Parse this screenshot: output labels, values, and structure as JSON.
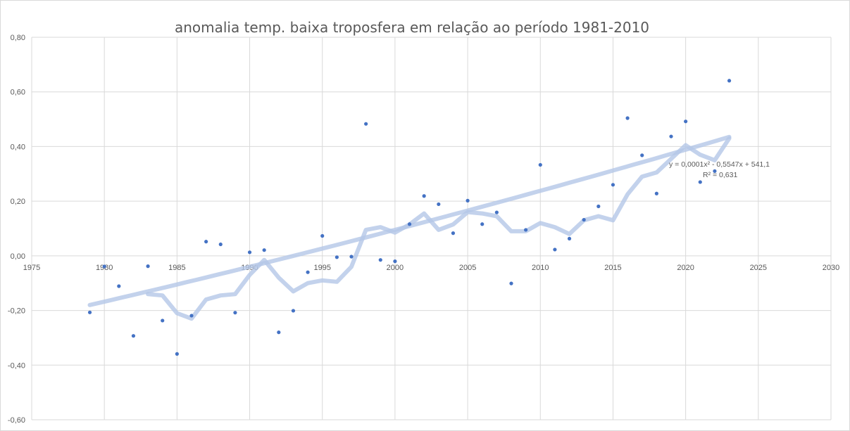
{
  "chart_data": {
    "type": "scatter",
    "title": "anomalia temp. baixa troposfera em relação ao período 1981-2010",
    "xlabel": "",
    "ylabel": "",
    "xlim": [
      1975,
      2030
    ],
    "ylim": [
      -0.6,
      0.8
    ],
    "x_ticks": [
      1975,
      1980,
      1985,
      1990,
      1995,
      2000,
      2005,
      2010,
      2015,
      2020,
      2025,
      2030
    ],
    "y_ticks": [
      -0.6,
      -0.4,
      -0.2,
      0.0,
      0.2,
      0.4,
      0.6,
      0.8
    ],
    "x_tick_labels": [
      "1975",
      "1980",
      "1985",
      "1990",
      "1995",
      "2000",
      "2005",
      "2010",
      "2015",
      "2020",
      "2025",
      "2030"
    ],
    "y_tick_labels": [
      "-0,60",
      "-0,40",
      "-0,20",
      "0,00",
      "0,20",
      "0,40",
      "0,60",
      "0,80"
    ],
    "grid": true,
    "colors": {
      "points": "#4472c4",
      "trend": "#b4c7e7",
      "grid": "#d9d9d9",
      "text": "#595959"
    },
    "series": [
      {
        "x": [
          1979,
          1980,
          1981,
          1982,
          1983,
          1984,
          1985,
          1986,
          1987,
          1988,
          1989,
          1990,
          1991,
          1992,
          1993,
          1994,
          1995,
          1996,
          1997,
          1998,
          1999,
          2000,
          2001,
          2002,
          2003,
          2004,
          2005,
          2006,
          2007,
          2008,
          2009,
          2010,
          2011,
          2012,
          2013,
          2014,
          2015,
          2016,
          2017,
          2018,
          2019,
          2020,
          2021,
          2022,
          2023
        ],
        "y": [
          -0.207,
          -0.039,
          -0.111,
          -0.293,
          -0.038,
          -0.237,
          -0.359,
          -0.219,
          0.052,
          0.042,
          -0.208,
          0.013,
          0.021,
          -0.28,
          -0.201,
          -0.06,
          0.073,
          -0.005,
          -0.003,
          0.483,
          -0.015,
          -0.02,
          0.116,
          0.219,
          0.189,
          0.083,
          0.202,
          0.116,
          0.159,
          -0.101,
          0.095,
          0.333,
          0.023,
          0.063,
          0.132,
          0.181,
          0.26,
          0.504,
          0.368,
          0.228,
          0.437,
          0.492,
          0.27,
          0.31,
          0.641
        ]
      }
    ],
    "moving_average": {
      "x": [
        1983,
        1984,
        1985,
        1986,
        1987,
        1988,
        1989,
        1990,
        1991,
        1992,
        1993,
        1994,
        1995,
        1996,
        1997,
        1998,
        1999,
        2000,
        2001,
        2002,
        2003,
        2004,
        2005,
        2006,
        2007,
        2008,
        2009,
        2010,
        2011,
        2012,
        2013,
        2014,
        2015,
        2016,
        2017,
        2018,
        2019,
        2020,
        2021,
        2022,
        2023
      ],
      "y": [
        -0.14,
        -0.145,
        -0.21,
        -0.23,
        -0.16,
        -0.145,
        -0.14,
        -0.07,
        -0.015,
        -0.08,
        -0.13,
        -0.1,
        -0.09,
        -0.095,
        -0.04,
        0.095,
        0.105,
        0.085,
        0.115,
        0.155,
        0.095,
        0.115,
        0.16,
        0.155,
        0.145,
        0.09,
        0.09,
        0.12,
        0.105,
        0.08,
        0.13,
        0.145,
        0.13,
        0.225,
        0.29,
        0.305,
        0.355,
        0.405,
        0.37,
        0.35,
        0.43
      ]
    },
    "trendline": {
      "type": "polynomial",
      "order": 2,
      "x_range": [
        1979,
        2023
      ],
      "y_start": -0.18,
      "y_end": 0.435,
      "equation": "y = 0,0001x² - 0,5547x + 541,1",
      "r_squared": "R² = 0,631"
    }
  }
}
